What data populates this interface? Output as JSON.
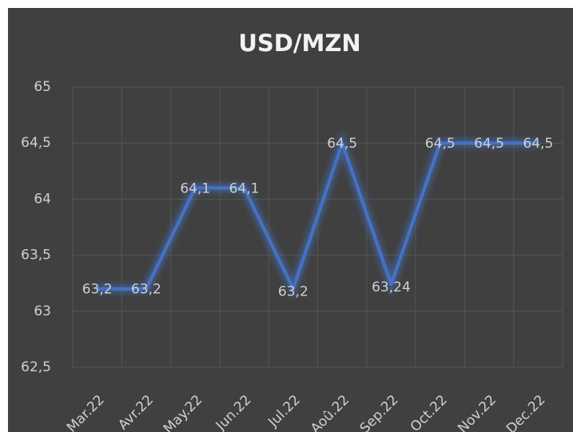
{
  "chart_data": {
    "type": "line",
    "title": "USD/MZN",
    "categories": [
      "Mar.22",
      "Avr.22",
      "May.22",
      "Jun.22",
      "Jul.22",
      "Aoû.22",
      "Sep.22",
      "Oct.22",
      "Nov.22",
      "Dec.22"
    ],
    "series": [
      {
        "name": "USD/MZN",
        "color": "#4472c4",
        "values": [
          63.2,
          63.2,
          64.1,
          64.1,
          63.2,
          64.5,
          63.24,
          64.5,
          64.5,
          64.5
        ],
        "value_labels": [
          "63,2",
          "63,2",
          "64,1",
          "64,1",
          "63,2",
          "64,5",
          "63,24",
          "64,5",
          "64,5",
          "64,5"
        ]
      }
    ],
    "ylim": [
      62.5,
      65
    ],
    "yticks": [
      {
        "value": 62.5,
        "label": "62,5"
      },
      63,
      {
        "value": 63.5,
        "label": "63,5"
      },
      64,
      {
        "value": 64.5,
        "label": "64,5"
      },
      65
    ],
    "grid": true
  }
}
